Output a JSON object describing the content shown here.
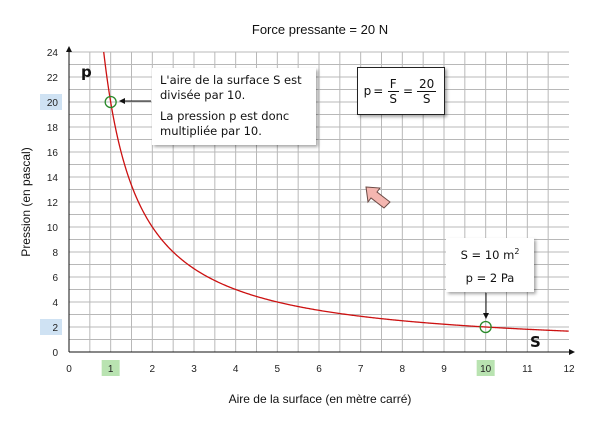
{
  "chart_data": {
    "type": "line",
    "title": "Force pressante = 20 N",
    "xlabel": "Aire de la surface (en mètre carré)",
    "ylabel": "Pression (en pascal)",
    "xlim": [
      0,
      12
    ],
    "ylim": [
      0,
      24
    ],
    "x_ticks": [
      "0",
      "1",
      "2",
      "3",
      "4",
      "5",
      "6",
      "7",
      "8",
      "9",
      "10",
      "11",
      "12"
    ],
    "y_ticks": [
      "0",
      "2",
      "4",
      "6",
      "8",
      "10",
      "12",
      "14",
      "16",
      "18",
      "20",
      "22",
      "24"
    ],
    "grid": true,
    "series": [
      {
        "formula": "p = 20 / S",
        "color": "#cc1111",
        "x": [
          0.833,
          1,
          1.5,
          2,
          2.5,
          3,
          4,
          5,
          6,
          7,
          8,
          9,
          10,
          11,
          12
        ],
        "y": [
          24,
          20,
          13.33,
          10,
          8,
          6.67,
          5,
          4,
          3.33,
          2.86,
          2.5,
          2.22,
          2,
          1.82,
          1.67
        ]
      }
    ],
    "highlighted_points": [
      {
        "x": 1,
        "y": 20
      },
      {
        "x": 10,
        "y": 2
      }
    ],
    "highlighted_x_ticks": [
      "1",
      "10"
    ],
    "highlighted_y_ticks": [
      "20",
      "2"
    ],
    "axis_var_x": "S",
    "axis_var_y": "p"
  },
  "annotations": {
    "left_line1": "L'aire de la surface S est divisée par 10.",
    "left_line2": "La pression p est donc multipliée par 10.",
    "right_line1_prefix": "S = 10 m",
    "right_line1_sup": "2",
    "right_line2": "p = 2 Pa",
    "formula": {
      "lhs": "p",
      "num1": "F",
      "den1": "S",
      "num2": "20",
      "den2": "S"
    }
  },
  "colors": {
    "highlight_x": "#b9e3b1",
    "highlight_y": "#cfe2f3",
    "curve": "#cc1111",
    "marker": "#2a8a2a",
    "arrow": "#f4b6b0"
  }
}
